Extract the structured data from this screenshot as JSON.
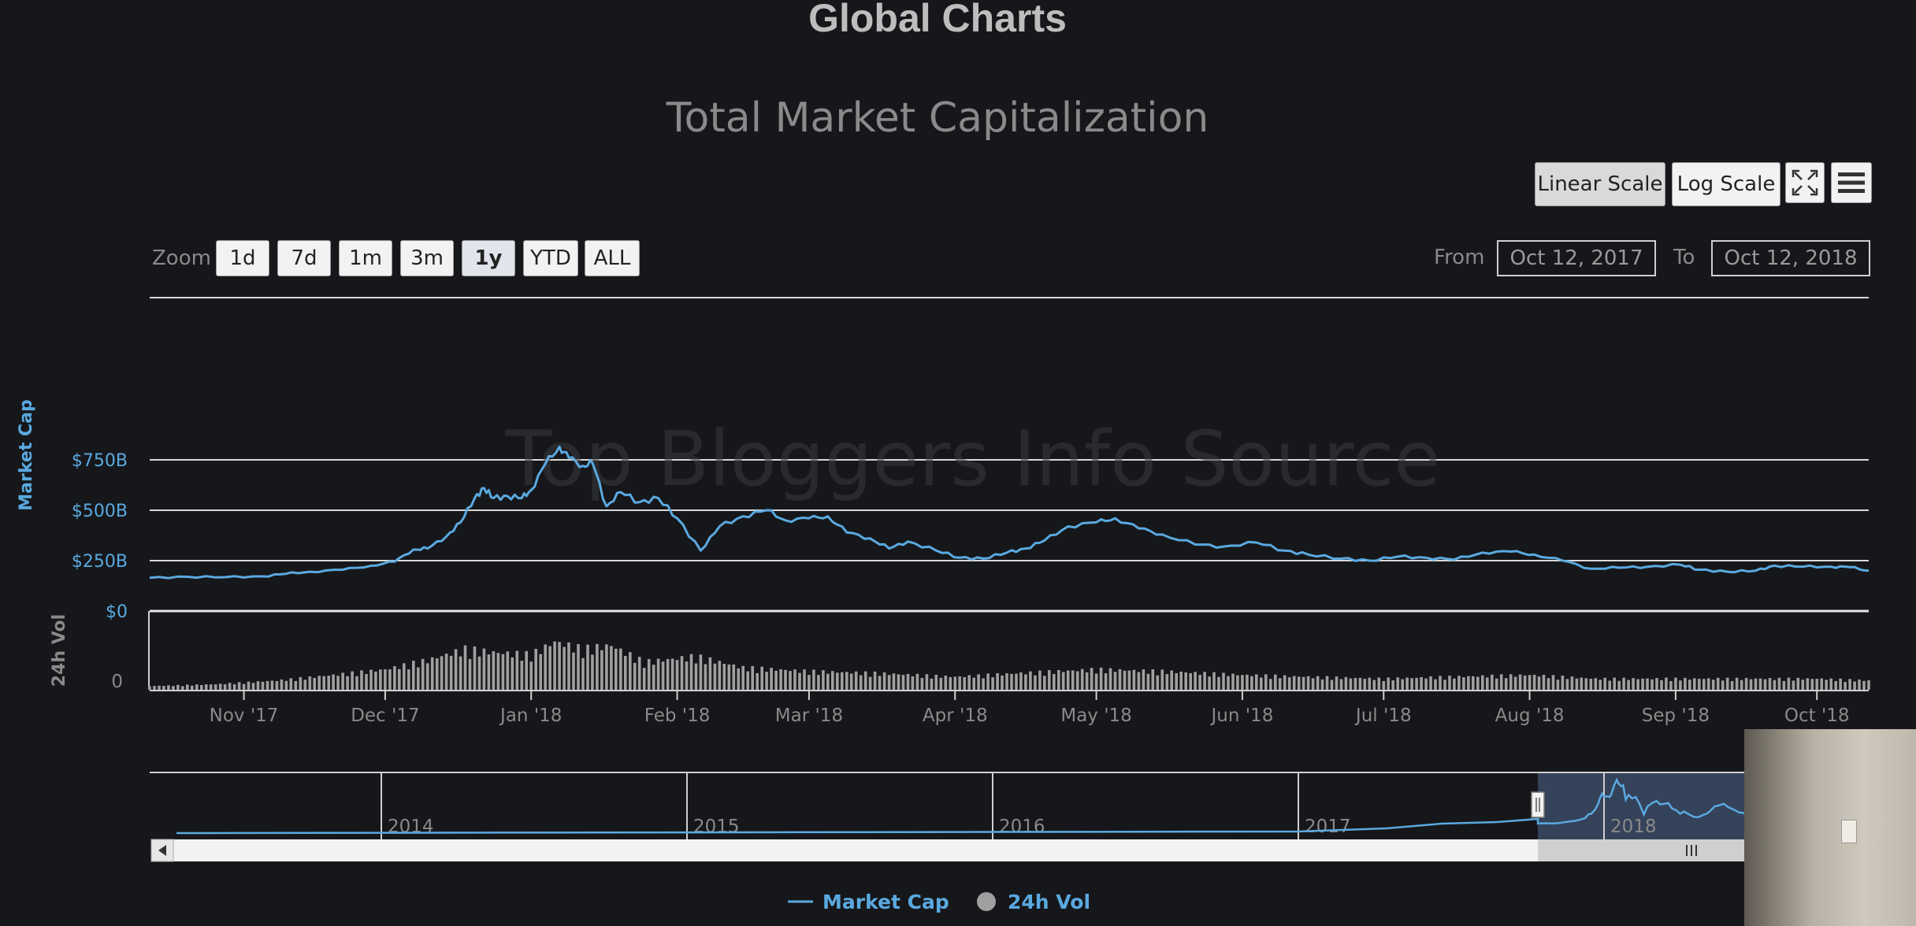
{
  "page": {
    "title": "Global Charts"
  },
  "chart_title": "Total Market Capitalization",
  "watermark": "Top Bloggers Info Source",
  "toolbar": {
    "scale_buttons": [
      "Linear Scale",
      "Log Scale"
    ],
    "active_scale": "Linear Scale",
    "fullscreen_icon": "fullscreen-icon",
    "menu_icon": "hamburger-menu-icon"
  },
  "zoom": {
    "label": "Zoom",
    "options": [
      "1d",
      "7d",
      "1m",
      "3m",
      "1y",
      "YTD",
      "ALL"
    ],
    "selected": "1y"
  },
  "range": {
    "from_label": "From",
    "from_value": "Oct 12, 2017",
    "to_label": "To",
    "to_value": "Oct 12, 2018"
  },
  "chart_data": {
    "type": "line",
    "title": "Total Market Capitalization",
    "x_range": [
      "2017-10-12",
      "2018-10-12"
    ],
    "x_tick_labels": [
      "Nov '17",
      "Dec '17",
      "Jan '18",
      "Feb '18",
      "Mar '18",
      "Apr '18",
      "May '18",
      "Jun '18",
      "Jul '18",
      "Aug '18",
      "Sep '18",
      "Oct '18"
    ],
    "y_axis": {
      "label": "Market Cap",
      "tick_labels": [
        "$0",
        "$250B",
        "$500B",
        "$750B"
      ],
      "ticks": [
        0,
        250,
        500,
        750
      ],
      "range": [
        0,
        1000
      ],
      "unit": "B USD"
    },
    "volume_axis": {
      "label": "24h Vol",
      "tick_labels": [
        "0"
      ]
    },
    "grid": true,
    "legend": {
      "position": "bottom-center",
      "items": [
        "Market Cap",
        "24h Vol"
      ]
    },
    "series": [
      {
        "name": "Market Cap",
        "color": "#5aa9e0",
        "points": [
          [
            "2017-10-12",
            165
          ],
          [
            "2017-10-20",
            170
          ],
          [
            "2017-10-28",
            168
          ],
          [
            "2017-11-05",
            172
          ],
          [
            "2017-11-10",
            185
          ],
          [
            "2017-11-15",
            195
          ],
          [
            "2017-11-22",
            205
          ],
          [
            "2017-11-28",
            225
          ],
          [
            "2017-12-03",
            245
          ],
          [
            "2017-12-07",
            305
          ],
          [
            "2017-12-10",
            310
          ],
          [
            "2017-12-14",
            370
          ],
          [
            "2017-12-17",
            440
          ],
          [
            "2017-12-20",
            560
          ],
          [
            "2017-12-22",
            610
          ],
          [
            "2017-12-24",
            560
          ],
          [
            "2017-12-27",
            570
          ],
          [
            "2017-12-30",
            560
          ],
          [
            "2018-01-01",
            600
          ],
          [
            "2018-01-04",
            730
          ],
          [
            "2018-01-07",
            815
          ],
          [
            "2018-01-09",
            760
          ],
          [
            "2018-01-12",
            720
          ],
          [
            "2018-01-14",
            735
          ],
          [
            "2018-01-17",
            520
          ],
          [
            "2018-01-20",
            590
          ],
          [
            "2018-01-24",
            540
          ],
          [
            "2018-01-28",
            560
          ],
          [
            "2018-02-01",
            460
          ],
          [
            "2018-02-06",
            300
          ],
          [
            "2018-02-10",
            420
          ],
          [
            "2018-02-15",
            470
          ],
          [
            "2018-02-20",
            500
          ],
          [
            "2018-02-24",
            450
          ],
          [
            "2018-03-01",
            460
          ],
          [
            "2018-03-05",
            470
          ],
          [
            "2018-03-09",
            390
          ],
          [
            "2018-03-14",
            360
          ],
          [
            "2018-03-18",
            310
          ],
          [
            "2018-03-22",
            345
          ],
          [
            "2018-03-28",
            300
          ],
          [
            "2018-04-02",
            265
          ],
          [
            "2018-04-07",
            260
          ],
          [
            "2018-04-12",
            290
          ],
          [
            "2018-04-16",
            310
          ],
          [
            "2018-04-20",
            350
          ],
          [
            "2018-04-25",
            420
          ],
          [
            "2018-05-01",
            440
          ],
          [
            "2018-05-05",
            460
          ],
          [
            "2018-05-10",
            410
          ],
          [
            "2018-05-15",
            380
          ],
          [
            "2018-05-22",
            330
          ],
          [
            "2018-05-28",
            320
          ],
          [
            "2018-06-04",
            340
          ],
          [
            "2018-06-10",
            300
          ],
          [
            "2018-06-15",
            280
          ],
          [
            "2018-06-22",
            260
          ],
          [
            "2018-06-28",
            250
          ],
          [
            "2018-07-04",
            270
          ],
          [
            "2018-07-10",
            265
          ],
          [
            "2018-07-16",
            255
          ],
          [
            "2018-07-22",
            290
          ],
          [
            "2018-07-28",
            295
          ],
          [
            "2018-08-02",
            280
          ],
          [
            "2018-08-08",
            250
          ],
          [
            "2018-08-14",
            210
          ],
          [
            "2018-08-20",
            215
          ],
          [
            "2018-08-26",
            220
          ],
          [
            "2018-09-02",
            230
          ],
          [
            "2018-09-06",
            205
          ],
          [
            "2018-09-12",
            195
          ],
          [
            "2018-09-18",
            200
          ],
          [
            "2018-09-22",
            225
          ],
          [
            "2018-09-28",
            220
          ],
          [
            "2018-10-04",
            220
          ],
          [
            "2018-10-08",
            218
          ],
          [
            "2018-10-12",
            200
          ]
        ]
      },
      {
        "name": "24h Vol",
        "color": "#a0a0a0",
        "points": [
          [
            "2017-10-12",
            2
          ],
          [
            "2017-10-26",
            3
          ],
          [
            "2017-11-08",
            5
          ],
          [
            "2017-11-20",
            8
          ],
          [
            "2017-12-01",
            11
          ],
          [
            "2017-12-10",
            16
          ],
          [
            "2017-12-18",
            22
          ],
          [
            "2017-12-25",
            20
          ],
          [
            "2018-01-01",
            19
          ],
          [
            "2018-01-06",
            26
          ],
          [
            "2018-01-12",
            22
          ],
          [
            "2018-01-18",
            24
          ],
          [
            "2018-01-25",
            15
          ],
          [
            "2018-02-05",
            18
          ],
          [
            "2018-02-15",
            12
          ],
          [
            "2018-03-01",
            10
          ],
          [
            "2018-03-15",
            9
          ],
          [
            "2018-04-01",
            7
          ],
          [
            "2018-04-15",
            9
          ],
          [
            "2018-05-01",
            11
          ],
          [
            "2018-05-15",
            10
          ],
          [
            "2018-06-01",
            8
          ],
          [
            "2018-06-15",
            7
          ],
          [
            "2018-07-01",
            6
          ],
          [
            "2018-07-15",
            7
          ],
          [
            "2018-08-01",
            8
          ],
          [
            "2018-08-15",
            6
          ],
          [
            "2018-09-01",
            6
          ],
          [
            "2018-09-15",
            6
          ],
          [
            "2018-10-01",
            6
          ],
          [
            "2018-10-12",
            5
          ]
        ]
      }
    ]
  },
  "navigator": {
    "year_labels": [
      "2014",
      "2015",
      "2016",
      "2017",
      "2018"
    ],
    "scroll_left_icon": "scroll-left-arrow-icon",
    "scroll_thumb_icon": "scroll-thumb-grip-icon",
    "handle_icon": "navigator-handle-icon"
  }
}
